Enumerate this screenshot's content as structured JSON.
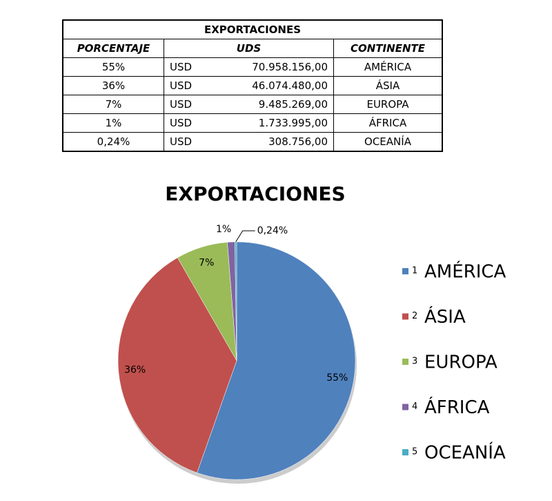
{
  "table": {
    "title": "EXPORTACIONES",
    "headers": [
      "PORCENTAJE",
      "UDS",
      "CONTINENTE"
    ],
    "rows": [
      [
        "55%",
        "USD",
        "70.958.156,00",
        "AMÉRICA"
      ],
      [
        "36%",
        "USD",
        "46.074.480,00",
        "ÁSIA"
      ],
      [
        "7%",
        "USD",
        "9.485.269,00",
        "EUROPA"
      ],
      [
        "1%",
        "USD",
        "1.733.995,00",
        "ÁFRICA"
      ],
      [
        "0,24%",
        "USD",
        "308.756,00",
        "OCEANÍA"
      ]
    ]
  },
  "chart_data": {
    "type": "pie",
    "title": "EXPORTACIONES",
    "categories": [
      "AMÉRICA",
      "ÁSIA",
      "EUROPA",
      "ÁFRICA",
      "OCEANÍA"
    ],
    "legend_numbers": [
      "1",
      "2",
      "3",
      "4",
      "5"
    ],
    "values": [
      55,
      36,
      7,
      1,
      0.24
    ],
    "value_labels": [
      "55%",
      "36%",
      "7%",
      "1%",
      "0,24%"
    ],
    "colors": [
      "#4f81bd",
      "#c0504d",
      "#9bbb59",
      "#8064a2",
      "#4bacc6"
    ],
    "legend": "right"
  }
}
